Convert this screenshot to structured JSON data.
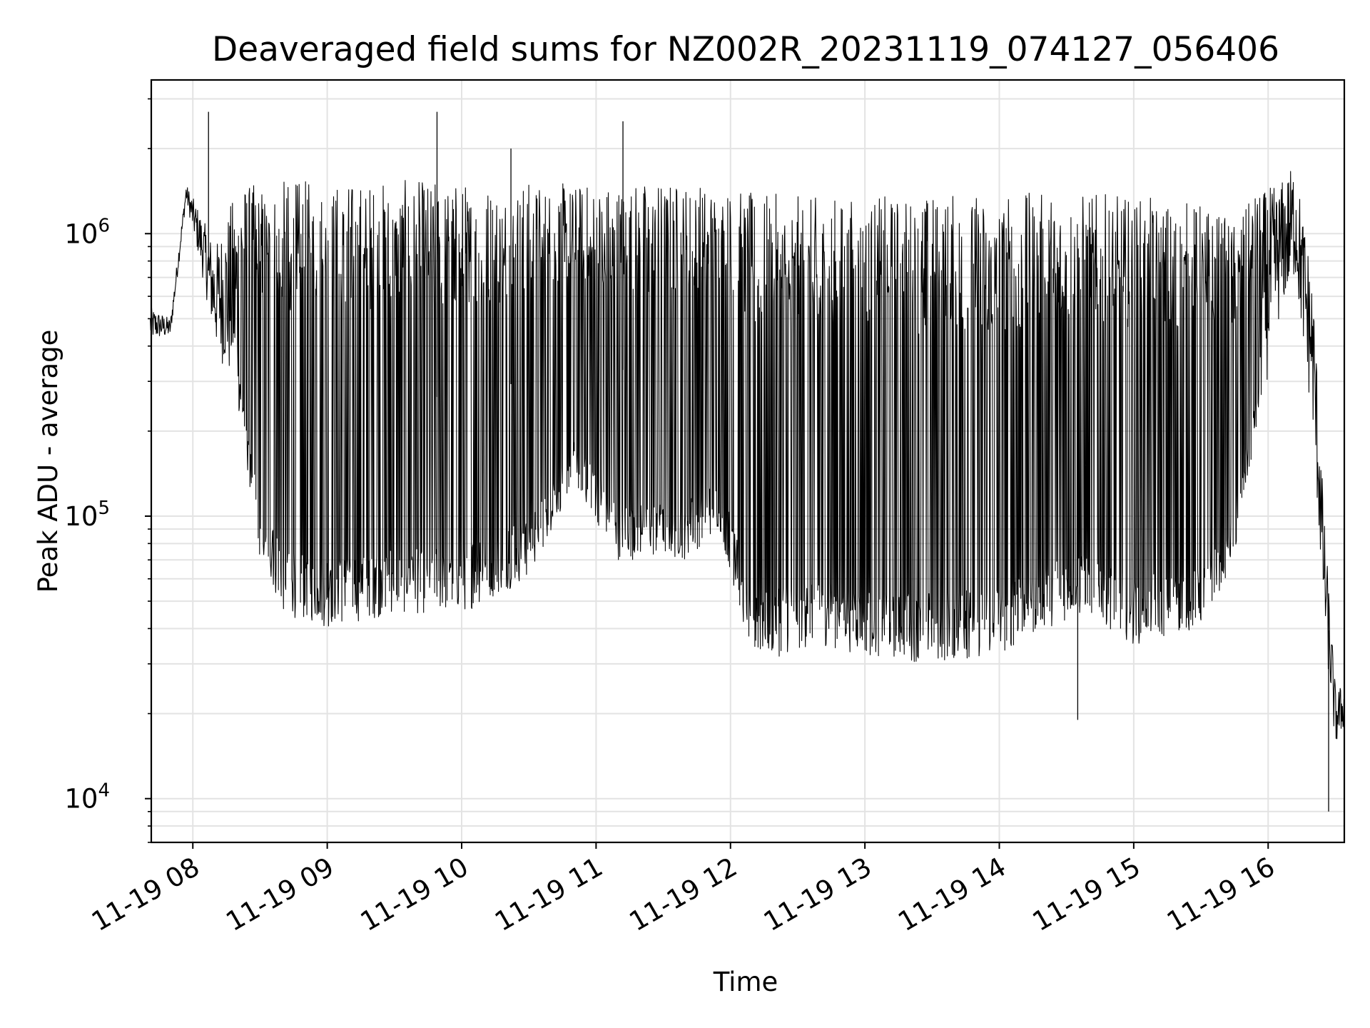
{
  "chart_data": {
    "type": "line",
    "title": "Deaveraged field sums for NZ002R_20231119_074127_056406",
    "xlabel": "Time",
    "ylabel": "Peak ADU - average",
    "yscale": "log",
    "xlim": [
      "2023-11-19 07:41:27",
      "2023-11-19 16:34:00"
    ],
    "ylim": [
      7000,
      3500000
    ],
    "grid": true,
    "series_color": "#000000",
    "x_ticks": [
      {
        "label": "11-19 08",
        "time": "2023-11-19 08:00"
      },
      {
        "label": "11-19 09",
        "time": "2023-11-19 09:00"
      },
      {
        "label": "11-19 10",
        "time": "2023-11-19 10:00"
      },
      {
        "label": "11-19 11",
        "time": "2023-11-19 11:00"
      },
      {
        "label": "11-19 12",
        "time": "2023-11-19 12:00"
      },
      {
        "label": "11-19 13",
        "time": "2023-11-19 13:00"
      },
      {
        "label": "11-19 14",
        "time": "2023-11-19 14:00"
      },
      {
        "label": "11-19 15",
        "time": "2023-11-19 15:00"
      },
      {
        "label": "11-19 16",
        "time": "2023-11-19 16:00"
      }
    ],
    "y_ticks": [
      {
        "base": "10",
        "exp": "4",
        "value": 10000
      },
      {
        "base": "10",
        "exp": "5",
        "value": 100000
      },
      {
        "base": "10",
        "exp": "6",
        "value": 1000000
      }
    ],
    "series": [
      {
        "envelope": {
          "time": [
            "2023-11-19 07:41",
            "2023-11-19 07:50",
            "2023-11-19 07:57",
            "2023-11-19 08:03",
            "2023-11-19 08:10",
            "2023-11-19 08:20",
            "2023-11-19 08:30",
            "2023-11-19 08:40",
            "2023-11-19 09:00",
            "2023-11-19 09:30",
            "2023-11-19 10:00",
            "2023-11-19 10:30",
            "2023-11-19 10:50",
            "2023-11-19 11:10",
            "2023-11-19 11:40",
            "2023-11-19 11:55",
            "2023-11-19 12:10",
            "2023-11-19 12:40",
            "2023-11-19 13:00",
            "2023-11-19 13:30",
            "2023-11-19 14:00",
            "2023-11-19 14:20",
            "2023-11-19 14:40",
            "2023-11-19 15:00",
            "2023-11-19 15:30",
            "2023-11-19 15:45",
            "2023-11-19 15:55",
            "2023-11-19 16:05",
            "2023-11-19 16:12",
            "2023-11-19 16:20",
            "2023-11-19 16:25",
            "2023-11-19 16:30",
            "2023-11-19 16:34"
          ],
          "low": [
            420000,
            430000,
            1300000,
            800000,
            400000,
            250000,
            70000,
            45000,
            40000,
            45000,
            45000,
            60000,
            130000,
            70000,
            70000,
            90000,
            30000,
            35000,
            32000,
            30000,
            32000,
            40000,
            45000,
            35000,
            40000,
            70000,
            200000,
            500000,
            700000,
            200000,
            40000,
            15000,
            18000
          ],
          "high": [
            550000,
            500000,
            1500000,
            1200000,
            900000,
            1500000,
            1500000,
            1550000,
            1550000,
            1550000,
            1550000,
            1550000,
            1500000,
            1550000,
            1550000,
            1500000,
            1400000,
            1350000,
            1350000,
            1400000,
            1400000,
            1400000,
            1400000,
            1350000,
            1300000,
            1100000,
            1400000,
            1500000,
            1800000,
            700000,
            100000,
            25000,
            25000
          ]
        },
        "spikes": [
          {
            "time": "2023-11-19 08:07",
            "value": 2700000
          },
          {
            "time": "2023-11-19 09:49",
            "value": 2700000
          },
          {
            "time": "2023-11-19 10:22",
            "value": 2000000
          },
          {
            "time": "2023-11-19 11:12",
            "value": 2500000
          },
          {
            "time": "2023-11-19 14:35",
            "value": 19000
          },
          {
            "time": "2023-11-19 16:27",
            "value": 9000
          }
        ]
      }
    ]
  }
}
